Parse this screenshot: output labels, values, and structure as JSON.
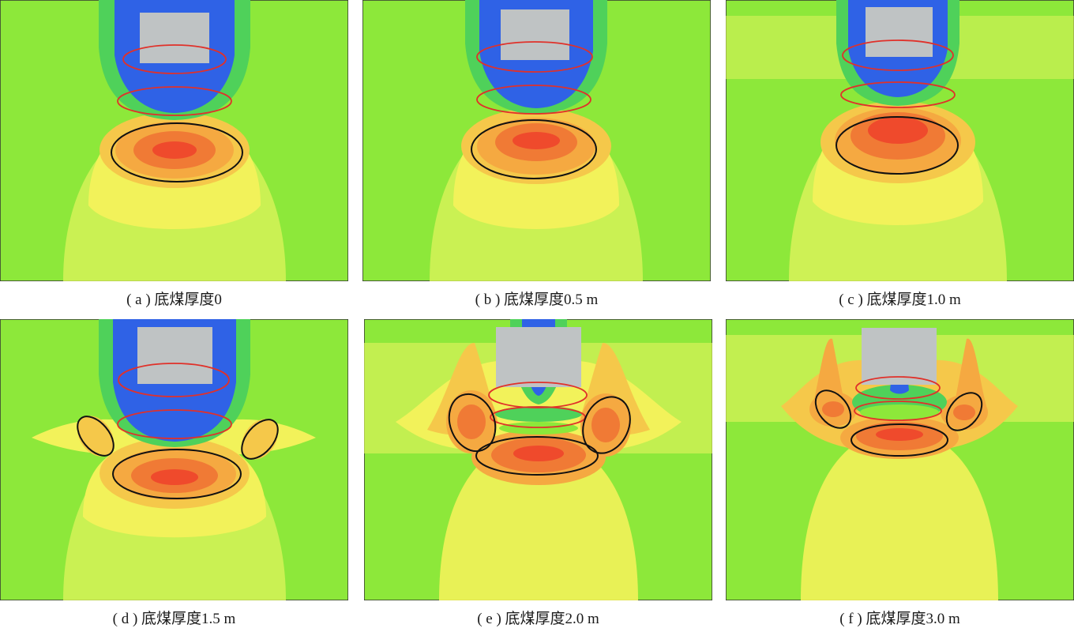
{
  "colors": {
    "background": "#8de83a",
    "green_band": "#4fd15a",
    "blue_core": "#2f62e6",
    "yellow_zone": "#f2f25a",
    "orange_zone": "#f5a941",
    "red_core": "#ef4a2c",
    "roadway": "#bfc3c4",
    "red_outline": "#e0312a",
    "black_outline": "#111111"
  },
  "panels": [
    {
      "id": "a",
      "caption": "( a ) 底煤厚度0"
    },
    {
      "id": "b",
      "caption": "( b ) 底煤厚度0.5 m"
    },
    {
      "id": "c",
      "caption": "( c ) 底煤厚度1.0 m"
    },
    {
      "id": "d",
      "caption": "( d ) 底煤厚度1.5 m"
    },
    {
      "id": "e",
      "caption": "( e ) 底煤厚度2.0 m"
    },
    {
      "id": "f",
      "caption": "( f ) 底煤厚度3.0 m"
    }
  ]
}
